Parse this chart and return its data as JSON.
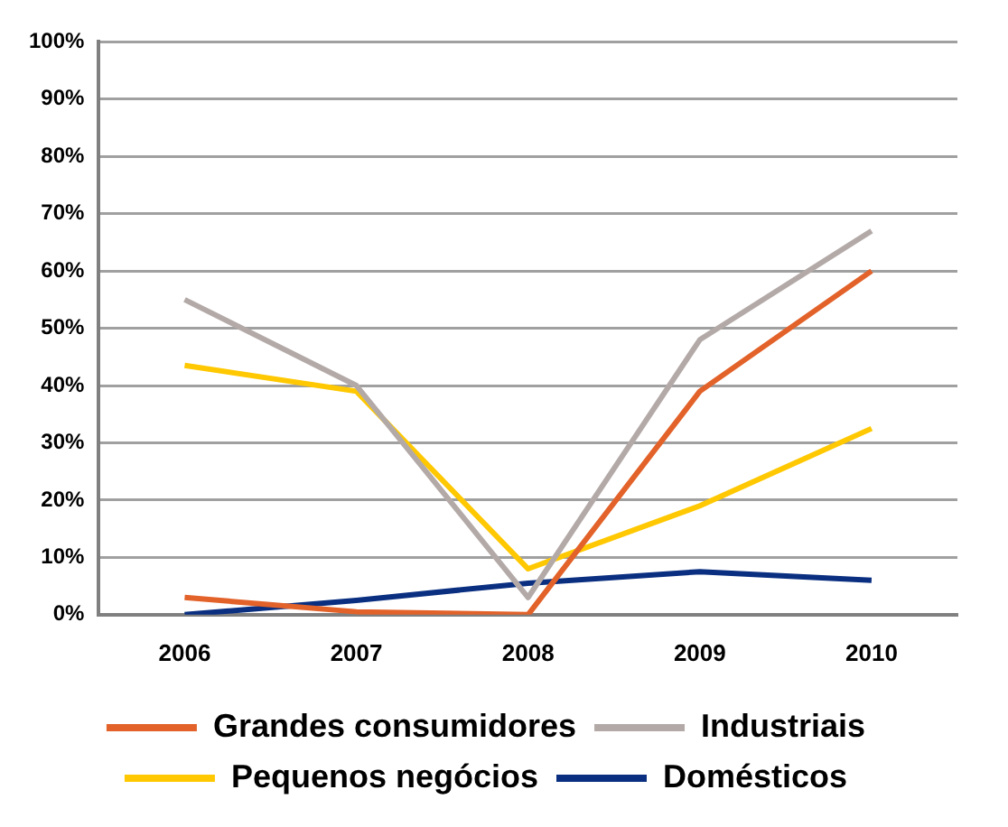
{
  "chart_data": {
    "type": "line",
    "categories": [
      "2006",
      "2007",
      "2008",
      "2009",
      "2010"
    ],
    "series": [
      {
        "name": "Grandes consumidores",
        "color": "#e2622a",
        "values": [
          3,
          0.5,
          0,
          39,
          60
        ]
      },
      {
        "name": "Industriais",
        "color": "#b3aaa8",
        "values": [
          55,
          40,
          3,
          48,
          67
        ]
      },
      {
        "name": "Pequenos negócios",
        "color": "#ffc800",
        "values": [
          43.5,
          39,
          8,
          19,
          32.5
        ]
      },
      {
        "name": "Domésticos",
        "color": "#0a2f80",
        "values": [
          0,
          2.5,
          5.5,
          7.5,
          6
        ]
      }
    ],
    "ylim": [
      0,
      100
    ],
    "yticks": [
      {
        "value": 0,
        "label": "0%"
      },
      {
        "value": 10,
        "label": "10%"
      },
      {
        "value": 20,
        "label": "20%"
      },
      {
        "value": 30,
        "label": "30%"
      },
      {
        "value": 40,
        "label": "40%"
      },
      {
        "value": 50,
        "label": "50%"
      },
      {
        "value": 60,
        "label": "60%"
      },
      {
        "value": 70,
        "label": "70%"
      },
      {
        "value": 80,
        "label": "80%"
      },
      {
        "value": 90,
        "label": "90%"
      },
      {
        "value": 100,
        "label": "100%"
      }
    ],
    "grid": "y",
    "legend": "bottom",
    "marker": "none",
    "line_style": "solid"
  }
}
